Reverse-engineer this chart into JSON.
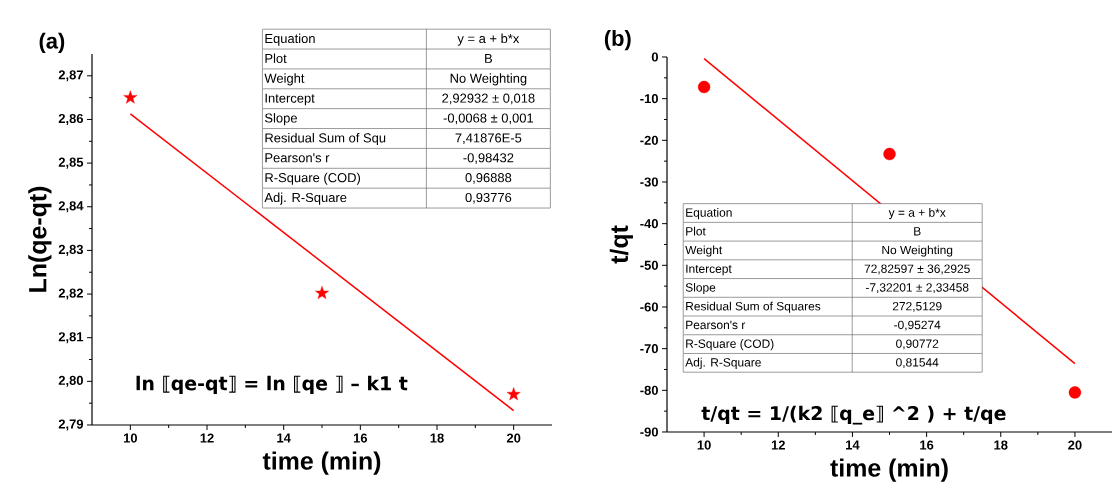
{
  "chart_data": [
    {
      "type": "scatter",
      "title": "(a)",
      "xlabel": "time (min)",
      "ylabel": "Ln(qe-qt)",
      "xlim": [
        9,
        21
      ],
      "ylim": [
        2.79,
        2.875
      ],
      "xticks": [
        10,
        12,
        14,
        16,
        18,
        20
      ],
      "yticks": [
        {
          "value": 2.79,
          "label": "2,79"
        },
        {
          "value": 2.8,
          "label": "2,80"
        },
        {
          "value": 2.81,
          "label": "2,81"
        },
        {
          "value": 2.82,
          "label": "2,82"
        },
        {
          "value": 2.83,
          "label": "2,83"
        },
        {
          "value": 2.84,
          "label": "2,84"
        },
        {
          "value": 2.85,
          "label": "2,85"
        },
        {
          "value": 2.86,
          "label": "2,86"
        },
        {
          "value": 2.87,
          "label": "2,87"
        }
      ],
      "series": [
        {
          "color": "#ff0000",
          "marker": "star",
          "x": [
            10,
            15,
            20
          ],
          "values": [
            2.865,
            2.8202,
            2.797
          ]
        },
        {
          "type": "line",
          "color": "#ff0000",
          "marker": "none",
          "x": [
            10,
            20
          ],
          "values": [
            2.8613,
            2.7933
          ]
        }
      ],
      "annotations": [
        "ln ⟦qe-qt⟧ = ln ⟦qe ⟧ – k1 t",
        "Equation",
        "y = a + b*x",
        "Plot",
        "B",
        "Weight",
        "No Weighting",
        "Intercept",
        "2,92932 ± 0,018",
        "Slope",
        "-0,0068 ± 0,001",
        "Residual Sum of Squ",
        "7,41876E-5",
        "Pearson's r",
        "-0,98432",
        "R-Square (COD)",
        "0,96888",
        "Adj. R-Square",
        "0,93776"
      ]
    },
    {
      "type": "scatter",
      "title": "(b)",
      "xlabel": "time (min)",
      "ylabel": "t/qt",
      "xlim": [
        9,
        21
      ],
      "ylim": [
        -90,
        0
      ],
      "xticks": [
        10,
        12,
        14,
        16,
        18,
        20
      ],
      "yticks": [
        -90,
        -80,
        -70,
        -60,
        -50,
        -40,
        -30,
        -20,
        -10,
        0
      ],
      "series": [
        {
          "color": "#ff0000",
          "marker": "circle",
          "x": [
            10,
            15,
            20
          ],
          "values": [
            -7.2,
            -23.3,
            -80.5
          ]
        },
        {
          "type": "line",
          "color": "#ff0000",
          "marker": "none",
          "x": [
            10,
            20
          ],
          "values": [
            -0.4,
            -73.6
          ]
        }
      ],
      "annotations": [
        "t/qt = 1/(k2 ⟦q_e⟧ ^2 ) + t/qe",
        "Equation",
        "y = a + b*x",
        "Plot",
        "B",
        "Weight",
        "No Weighting",
        "Intercept",
        "72,82597 ± 36,2925",
        "Slope",
        "-7,32201 ± 2,33458",
        "Residual Sum of Squares",
        "272,5129",
        "Pearson's r",
        "-0,95274",
        "R-Square (COD)",
        "0,90772",
        "Adj. R-Square",
        "0,81544"
      ]
    }
  ]
}
